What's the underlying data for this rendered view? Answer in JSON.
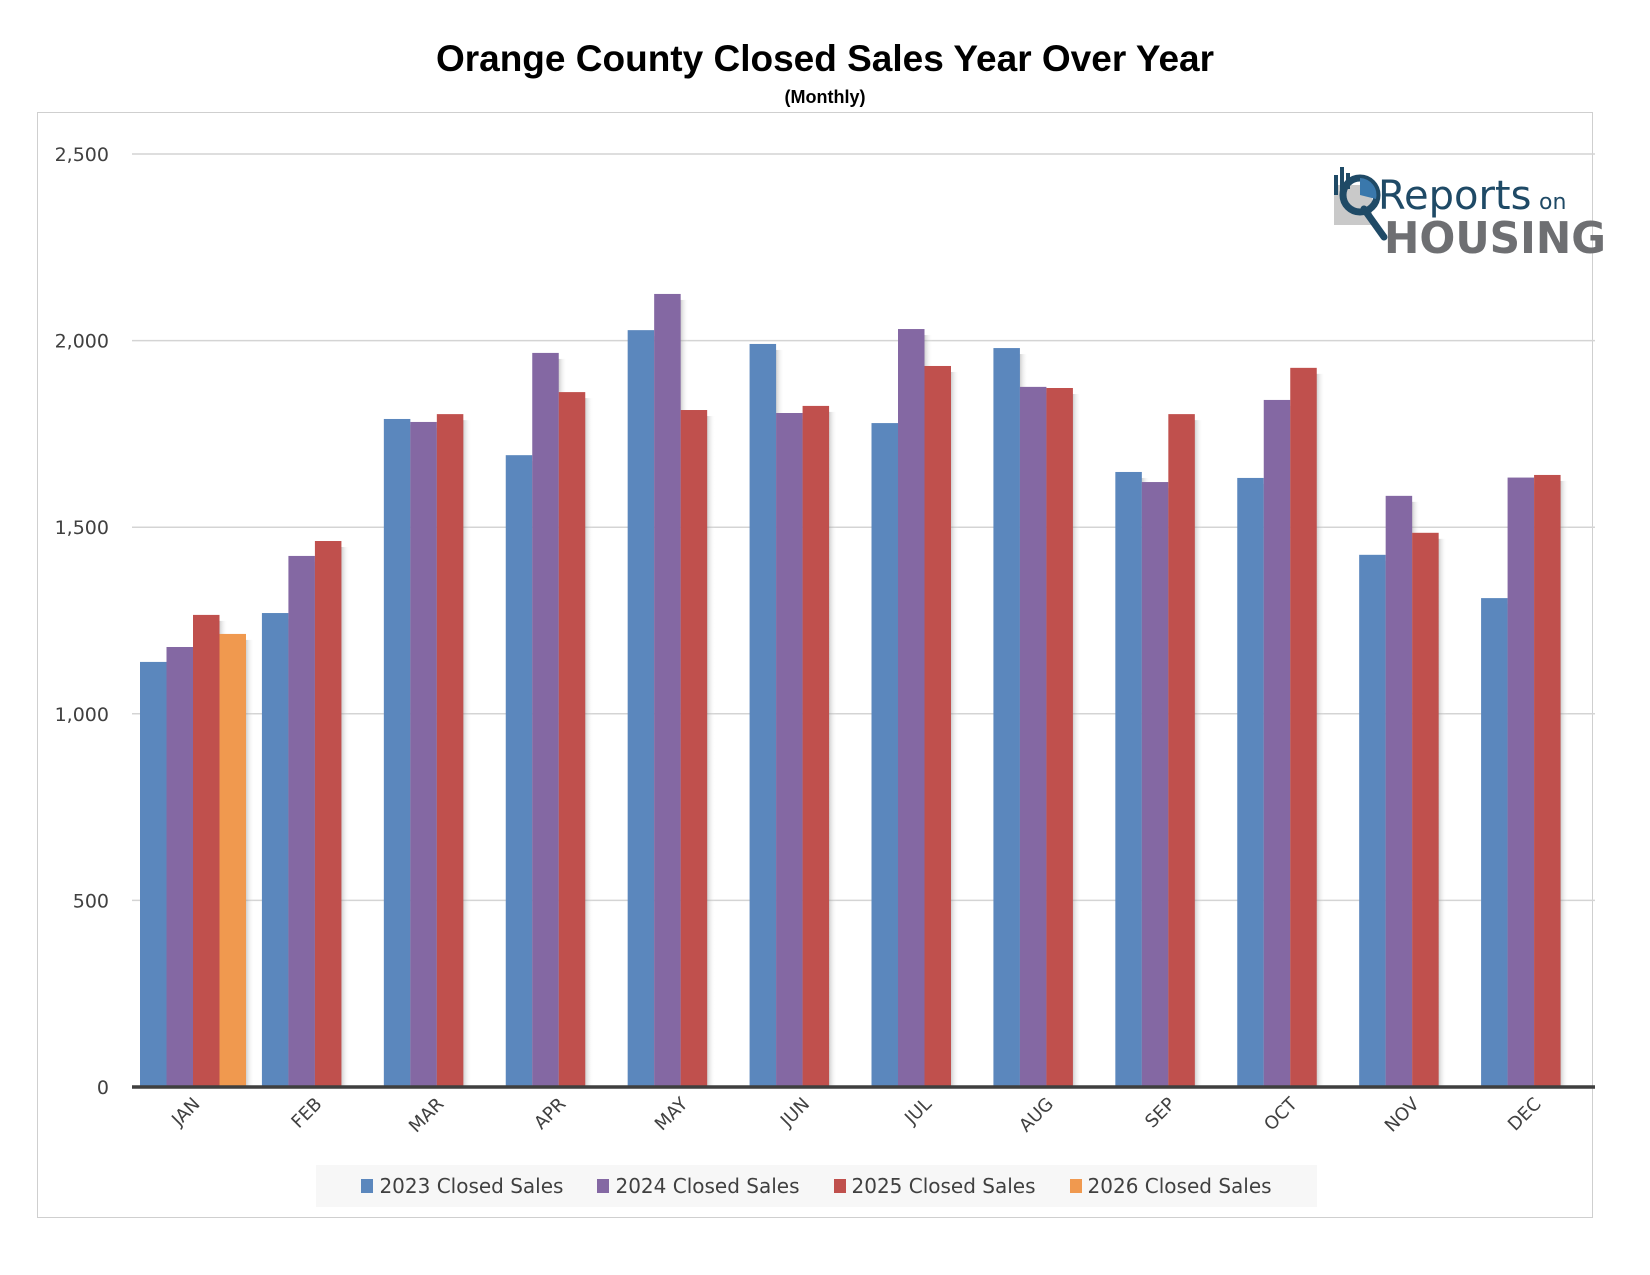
{
  "title": "Orange County Closed Sales Year Over Year",
  "subtitle": "(Monthly)",
  "logo": {
    "line1": "Reports",
    "line1_small": "on",
    "line2": "HOUSING",
    "colors": {
      "navy": "#1f4a66",
      "blue": "#3a78ac",
      "gray": "#6e6f72",
      "light_gray": "#c9c9c9"
    }
  },
  "chart_data": {
    "type": "bar",
    "title": "Orange County Closed Sales Year Over Year",
    "subtitle": "(Monthly)",
    "xlabel": "",
    "ylabel": "",
    "ylim": [
      0,
      2500
    ],
    "yticks": [
      0,
      500,
      1000,
      1500,
      2000,
      2500
    ],
    "ytick_labels": [
      "0",
      "500",
      "1,000",
      "1,500",
      "2,000",
      "2,500"
    ],
    "grid": true,
    "legend_position": "bottom",
    "categories": [
      "JAN",
      "FEB",
      "MAR",
      "APR",
      "MAY",
      "JUN",
      "JUL",
      "AUG",
      "SEP",
      "OCT",
      "NOV",
      "DEC"
    ],
    "series": [
      {
        "name": "2023 Closed Sales",
        "color": "#5b87bd",
        "values": [
          1139,
          1270,
          1790,
          1693,
          2028,
          1991,
          1779,
          1980,
          1648,
          1632,
          1426,
          1310
        ]
      },
      {
        "name": "2024 Closed Sales",
        "color": "#8468a3",
        "values": [
          1179,
          1423,
          1782,
          1967,
          2125,
          1806,
          2031,
          1876,
          1621,
          1841,
          1584,
          1633
        ]
      },
      {
        "name": "2025 Closed Sales",
        "color": "#c0504d",
        "values": [
          1265,
          1463,
          1803,
          1862,
          1814,
          1825,
          1932,
          1873,
          1803,
          1927,
          1485,
          1640
        ]
      },
      {
        "name": "2026 Closed Sales",
        "color": "#f0994f",
        "values": [
          1214,
          null,
          null,
          null,
          null,
          null,
          null,
          null,
          null,
          null,
          null,
          null
        ]
      }
    ]
  }
}
